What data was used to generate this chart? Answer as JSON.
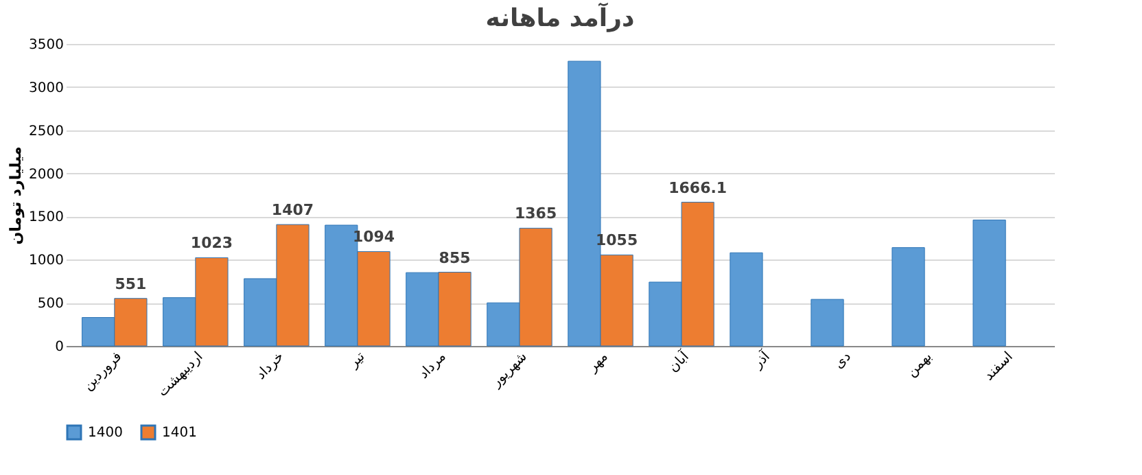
{
  "chart_data": {
    "type": "bar",
    "title": "درآمد ماهانه",
    "ylabel": "میلیارد تومان",
    "categories": [
      "فروردین",
      "اردیبهشت",
      "خرداد",
      "تیر",
      "مرداد",
      "شهریور",
      "مهر",
      "آبان",
      "آذر",
      "دی",
      "بهمن",
      "اسفند"
    ],
    "series": [
      {
        "name": "1400",
        "color": "#5b9bd5",
        "values": [
          330,
          560,
          780,
          1400,
          850,
          500,
          3300,
          740,
          1080,
          540,
          1140,
          1460
        ]
      },
      {
        "name": "1401",
        "color": "#ed7d31",
        "values": [
          551,
          1023,
          1407,
          1094,
          855,
          1365,
          1055,
          1666.1,
          null,
          null,
          null,
          null
        ],
        "value_labels": [
          "551",
          "1023",
          "1407",
          "1094",
          "855",
          "1365",
          "1055",
          "1666.1",
          null,
          null,
          null,
          null
        ]
      }
    ],
    "ylim": [
      0,
      3500
    ],
    "yticks": [
      0,
      500,
      1000,
      1500,
      2000,
      2500,
      3000,
      3500
    ],
    "grid": "y",
    "legend": "bottom"
  }
}
